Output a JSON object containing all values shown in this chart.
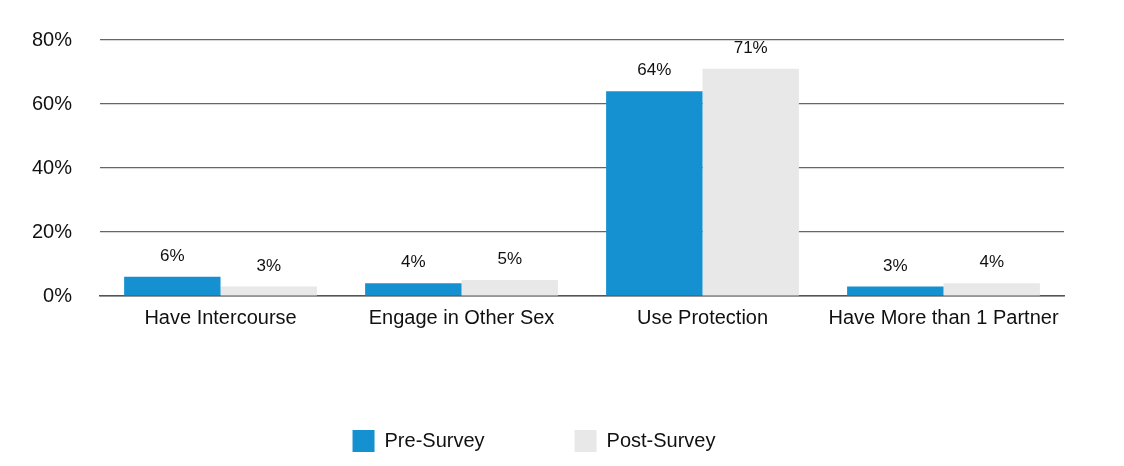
{
  "chart_data": {
    "type": "bar",
    "categories": [
      "Have Intercourse",
      "Engage in Other Sex",
      "Use Protection",
      "Have More than 1 Partner"
    ],
    "series": [
      {
        "name": "Pre-Survey",
        "color": "#1590d0",
        "values": [
          6,
          4,
          64,
          3
        ],
        "value_labels": [
          "6%",
          "4%",
          "64%",
          "3%"
        ]
      },
      {
        "name": "Post-Survey",
        "color": "#e8e8e8",
        "values": [
          3,
          5,
          71,
          4
        ],
        "value_labels": [
          "3%",
          "5%",
          "71%",
          "4%"
        ]
      }
    ],
    "ylim": [
      0,
      80
    ],
    "yticks": [
      {
        "value": 0,
        "label": "0%"
      },
      {
        "value": 20,
        "label": "20%"
      },
      {
        "value": 40,
        "label": "40%"
      },
      {
        "value": 60,
        "label": "60%"
      },
      {
        "value": 80,
        "label": "80%"
      }
    ],
    "grid": "y",
    "legend": "bottom"
  }
}
